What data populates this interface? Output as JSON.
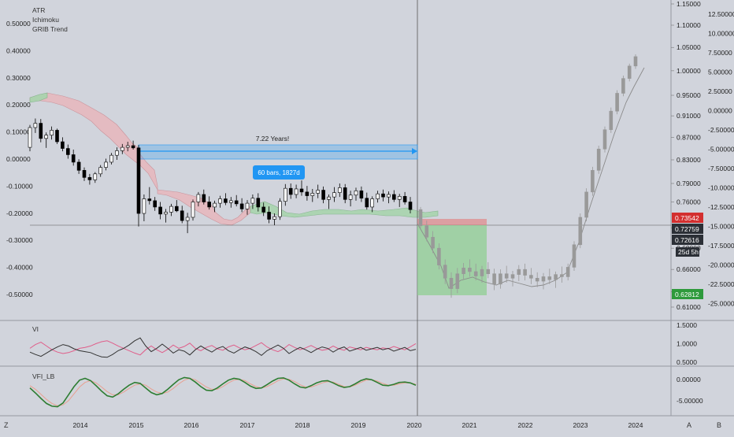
{
  "legend": {
    "main": [
      "ATR",
      "Ichimoku",
      "GRIB Trend"
    ],
    "vi": "VI",
    "vfi": "VFI_LB"
  },
  "annotations": {
    "range_label": "7.22 Years!",
    "bars_label": "60 bars, 1827d"
  },
  "badges": {
    "red": "0.73542",
    "dark1": "0.72759",
    "dark2": "0.72616",
    "countdown": "25d 5h",
    "green": "0.62812"
  },
  "bottom_bar": {
    "left_button": "Z",
    "auto_button": "A",
    "scale_button": "B"
  },
  "colors": {
    "background": "#d1d4dc",
    "up": "#ffffff",
    "down": "#000000",
    "cloud_green": "#a8d5ae",
    "cloud_red": "#e8b7bd",
    "measure_blue": "#2196f3",
    "target_green": "#8fcf93",
    "stop_red": "#e57373",
    "vi_plus": "#e05e8a",
    "vi_minus": "#333333",
    "vfi": "#2e7d32",
    "vfi_signal": "#e8a090",
    "badge_red": "#d32f2f",
    "badge_dark": "#2b2f36",
    "badge_green": "#2e9a3c"
  },
  "chart_data": {
    "type": "candlestick",
    "instrument_scale_left": {
      "label": "ATR",
      "ticks": [
        "0.50000",
        "0.40000",
        "0.30000",
        "0.20000",
        "0.10000",
        "0.00000",
        "-0.10000",
        "-0.20000",
        "-0.30000",
        "-0.40000",
        "-0.50000"
      ]
    },
    "price_scale": {
      "ticks": [
        "1.15000",
        "1.10000",
        "1.05000",
        "1.00000",
        "0.95000",
        "0.91000",
        "0.87000",
        "0.83000",
        "0.79000",
        "0.76000",
        "0.72000",
        "0.69000",
        "0.66000",
        "0.63000",
        "0.61000"
      ]
    },
    "secondary_scale": {
      "ticks": [
        "12.50000",
        "10.00000",
        "7.50000",
        "5.00000",
        "2.50000",
        "0.00000",
        "-2.50000",
        "-5.00000",
        "-7.50000",
        "-10.00000",
        "-12.50000",
        "-15.00000",
        "-17.50000",
        "-20.00000",
        "-22.50000",
        "-25.00000"
      ]
    },
    "vi_scale": {
      "ticks": [
        "1.5000",
        "1.0000",
        "0.5000"
      ]
    },
    "vfi_scale": {
      "ticks": [
        "0.00000",
        "-5.00000"
      ]
    },
    "x_ticks": [
      "2014",
      "2015",
      "2016",
      "2017",
      "2018",
      "2019",
      "2020",
      "2021",
      "2022",
      "2023",
      "2024"
    ],
    "vertical_marker": "2020",
    "series": [
      {
        "name": "historical",
        "ohlc": [
          [
            0.852,
            0.893,
            0.845,
            0.888
          ],
          [
            0.888,
            0.905,
            0.878,
            0.896
          ],
          [
            0.896,
            0.904,
            0.861,
            0.868
          ],
          [
            0.868,
            0.879,
            0.851,
            0.874
          ],
          [
            0.874,
            0.89,
            0.866,
            0.883
          ],
          [
            0.883,
            0.886,
            0.858,
            0.862
          ],
          [
            0.862,
            0.87,
            0.845,
            0.85
          ],
          [
            0.85,
            0.857,
            0.832,
            0.839
          ],
          [
            0.839,
            0.848,
            0.82,
            0.826
          ],
          [
            0.826,
            0.831,
            0.806,
            0.812
          ],
          [
            0.812,
            0.817,
            0.794,
            0.8
          ],
          [
            0.8,
            0.806,
            0.788,
            0.796
          ],
          [
            0.796,
            0.809,
            0.791,
            0.806
          ],
          [
            0.806,
            0.821,
            0.801,
            0.817
          ],
          [
            0.817,
            0.832,
            0.812,
            0.826
          ],
          [
            0.826,
            0.842,
            0.822,
            0.838
          ],
          [
            0.838,
            0.852,
            0.83,
            0.846
          ],
          [
            0.846,
            0.858,
            0.84,
            0.852
          ],
          [
            0.852,
            0.862,
            0.845,
            0.855
          ],
          [
            0.855,
            0.864,
            0.848,
            0.851
          ],
          [
            0.851,
            0.856,
            0.722,
            0.742
          ],
          [
            0.742,
            0.772,
            0.73,
            0.765
          ],
          [
            0.765,
            0.784,
            0.756,
            0.762
          ],
          [
            0.762,
            0.768,
            0.746,
            0.752
          ],
          [
            0.752,
            0.76,
            0.733,
            0.741
          ],
          [
            0.741,
            0.749,
            0.728,
            0.744
          ],
          [
            0.744,
            0.757,
            0.738,
            0.753
          ],
          [
            0.753,
            0.763,
            0.744,
            0.746
          ],
          [
            0.746,
            0.754,
            0.727,
            0.731
          ],
          [
            0.731,
            0.743,
            0.712,
            0.736
          ],
          [
            0.736,
            0.764,
            0.731,
            0.76
          ],
          [
            0.76,
            0.776,
            0.753,
            0.772
          ],
          [
            0.772,
            0.78,
            0.756,
            0.76
          ],
          [
            0.76,
            0.769,
            0.748,
            0.752
          ],
          [
            0.752,
            0.762,
            0.744,
            0.758
          ],
          [
            0.758,
            0.77,
            0.751,
            0.765
          ],
          [
            0.765,
            0.774,
            0.755,
            0.759
          ],
          [
            0.759,
            0.768,
            0.751,
            0.762
          ],
          [
            0.762,
            0.771,
            0.753,
            0.757
          ],
          [
            0.757,
            0.766,
            0.744,
            0.749
          ],
          [
            0.749,
            0.763,
            0.74,
            0.758
          ],
          [
            0.758,
            0.772,
            0.749,
            0.766
          ],
          [
            0.766,
            0.774,
            0.745,
            0.752
          ],
          [
            0.752,
            0.759,
            0.738,
            0.744
          ],
          [
            0.744,
            0.753,
            0.727,
            0.733
          ],
          [
            0.733,
            0.742,
            0.724,
            0.737
          ],
          [
            0.737,
            0.766,
            0.732,
            0.761
          ],
          [
            0.761,
            0.789,
            0.754,
            0.782
          ],
          [
            0.782,
            0.79,
            0.765,
            0.772
          ],
          [
            0.772,
            0.788,
            0.766,
            0.781
          ],
          [
            0.781,
            0.795,
            0.77,
            0.776
          ],
          [
            0.776,
            0.786,
            0.762,
            0.77
          ],
          [
            0.77,
            0.781,
            0.76,
            0.774
          ],
          [
            0.774,
            0.788,
            0.766,
            0.779
          ],
          [
            0.779,
            0.785,
            0.758,
            0.764
          ],
          [
            0.764,
            0.772,
            0.749,
            0.768
          ],
          [
            0.768,
            0.784,
            0.76,
            0.775
          ],
          [
            0.775,
            0.79,
            0.768,
            0.783
          ],
          [
            0.783,
            0.789,
            0.758,
            0.764
          ],
          [
            0.764,
            0.778,
            0.753,
            0.771
          ],
          [
            0.771,
            0.783,
            0.762,
            0.778
          ],
          [
            0.778,
            0.785,
            0.76,
            0.766
          ],
          [
            0.766,
            0.775,
            0.748,
            0.752
          ],
          [
            0.752,
            0.769,
            0.744,
            0.765
          ],
          [
            0.765,
            0.778,
            0.759,
            0.773
          ],
          [
            0.773,
            0.78,
            0.761,
            0.768
          ],
          [
            0.768,
            0.777,
            0.758,
            0.772
          ],
          [
            0.772,
            0.779,
            0.76,
            0.764
          ],
          [
            0.764,
            0.773,
            0.752,
            0.769
          ],
          [
            0.769,
            0.776,
            0.756,
            0.76
          ],
          [
            0.76,
            0.768,
            0.742,
            0.748
          ]
        ]
      },
      {
        "name": "projection",
        "ohlc": [
          [
            0.748,
            0.752,
            0.718,
            0.723
          ],
          [
            0.723,
            0.731,
            0.7,
            0.706
          ],
          [
            0.706,
            0.715,
            0.683,
            0.69
          ],
          [
            0.69,
            0.697,
            0.66,
            0.666
          ],
          [
            0.666,
            0.674,
            0.64,
            0.648
          ],
          [
            0.648,
            0.656,
            0.622,
            0.634
          ],
          [
            0.634,
            0.662,
            0.628,
            0.654
          ],
          [
            0.654,
            0.669,
            0.646,
            0.662
          ],
          [
            0.662,
            0.674,
            0.65,
            0.657
          ],
          [
            0.657,
            0.668,
            0.645,
            0.651
          ],
          [
            0.651,
            0.665,
            0.642,
            0.66
          ],
          [
            0.66,
            0.67,
            0.648,
            0.654
          ],
          [
            0.654,
            0.661,
            0.632,
            0.64
          ],
          [
            0.64,
            0.66,
            0.634,
            0.654
          ],
          [
            0.654,
            0.665,
            0.642,
            0.648
          ],
          [
            0.648,
            0.658,
            0.637,
            0.653
          ],
          [
            0.653,
            0.666,
            0.644,
            0.66
          ],
          [
            0.66,
            0.668,
            0.645,
            0.652
          ],
          [
            0.652,
            0.662,
            0.64,
            0.648
          ],
          [
            0.648,
            0.656,
            0.636,
            0.644
          ],
          [
            0.644,
            0.655,
            0.633,
            0.65
          ],
          [
            0.65,
            0.661,
            0.64,
            0.646
          ],
          [
            0.646,
            0.657,
            0.635,
            0.653
          ],
          [
            0.653,
            0.664,
            0.642,
            0.65
          ],
          [
            0.65,
            0.668,
            0.645,
            0.663
          ],
          [
            0.663,
            0.7,
            0.658,
            0.695
          ],
          [
            0.695,
            0.742,
            0.69,
            0.736
          ],
          [
            0.736,
            0.782,
            0.73,
            0.776
          ],
          [
            0.776,
            0.818,
            0.77,
            0.812
          ],
          [
            0.812,
            0.855,
            0.806,
            0.849
          ],
          [
            0.849,
            0.89,
            0.843,
            0.884
          ],
          [
            0.884,
            0.926,
            0.878,
            0.919
          ],
          [
            0.919,
            0.96,
            0.913,
            0.954
          ],
          [
            0.954,
            0.99,
            0.948,
            0.984
          ],
          [
            0.984,
            1.015,
            0.978,
            1.01
          ],
          [
            1.01,
            1.035,
            1.004,
            1.03
          ]
        ]
      }
    ],
    "vi": {
      "plus": [
        1.02,
        1.18,
        1.28,
        1.12,
        0.96,
        0.86,
        0.8,
        0.84,
        0.92,
        1.02,
        1.06,
        1.12,
        1.22,
        1.3,
        1.34,
        1.24,
        1.12,
        1.02,
        0.92,
        0.82,
        0.74,
        0.96,
        1.12,
        0.96,
        0.84,
        0.98,
        1.16,
        1.02,
        1.1,
        1.24,
        1.02,
        0.92,
        1.06,
        1.14,
        1.0,
        0.94,
        1.08,
        1.16,
        1.04,
        0.96,
        1.02,
        1.14,
        1.26,
        1.08,
        0.96,
        0.88,
        1.0,
        1.18,
        1.06,
        0.96,
        1.04,
        1.14,
        1.02,
        0.94,
        0.98,
        1.12,
        1.0,
        0.94,
        1.08,
        1.02,
        0.96,
        1.06,
        1.0,
        0.96,
        1.04,
        1.0,
        1.1,
        1.02,
        0.96,
        1.08,
        1.22
      ],
      "minus": [
        0.86,
        0.76,
        0.68,
        0.82,
        0.96,
        1.08,
        1.18,
        1.12,
        1.0,
        0.92,
        0.88,
        0.84,
        0.74,
        0.66,
        0.64,
        0.76,
        0.92,
        1.02,
        1.16,
        1.34,
        1.46,
        1.12,
        0.88,
        1.02,
        1.2,
        1.02,
        0.82,
        0.96,
        0.9,
        0.74,
        0.96,
        1.12,
        0.98,
        0.86,
        1.02,
        1.1,
        0.92,
        0.82,
        0.96,
        1.08,
        1.0,
        0.88,
        0.72,
        0.92,
        1.04,
        1.16,
        1.02,
        0.8,
        0.94,
        1.06,
        0.96,
        0.84,
        0.98,
        1.08,
        1.02,
        0.86,
        1.0,
        1.08,
        0.9,
        0.98,
        1.06,
        0.94,
        1.0,
        1.06,
        0.96,
        1.02,
        0.9,
        0.98,
        1.06,
        0.92,
        0.98
      ]
    },
    "vfi": {
      "main": [
        -1.5,
        -2.6,
        -3.8,
        -4.9,
        -5.5,
        -5.6,
        -4.8,
        -3.0,
        -1.2,
        0.2,
        0.6,
        0.1,
        -1.0,
        -2.2,
        -3.2,
        -3.5,
        -2.8,
        -1.8,
        -0.9,
        -0.3,
        -0.5,
        -1.5,
        -2.5,
        -3.0,
        -2.7,
        -1.8,
        -0.7,
        0.3,
        0.8,
        0.6,
        -0.2,
        -1.2,
        -2.0,
        -2.1,
        -1.5,
        -0.6,
        0.2,
        0.6,
        0.4,
        -0.3,
        -1.1,
        -1.6,
        -1.5,
        -0.8,
        0.0,
        0.6,
        0.7,
        0.2,
        -0.6,
        -1.3,
        -1.5,
        -1.0,
        -0.4,
        0.0,
        0.1,
        -0.4,
        -1.0,
        -1.4,
        -1.2,
        -0.6,
        0.1,
        0.5,
        0.3,
        -0.3,
        -0.9,
        -1.0,
        -0.7,
        -0.3,
        -0.2,
        -0.4,
        -0.9
      ],
      "signal": [
        -1.0,
        -1.8,
        -2.9,
        -4.0,
        -4.9,
        -5.4,
        -5.2,
        -4.3,
        -2.8,
        -1.3,
        -0.3,
        0.1,
        -0.4,
        -1.3,
        -2.3,
        -3.0,
        -3.0,
        -2.4,
        -1.6,
        -0.9,
        -0.6,
        -0.9,
        -1.7,
        -2.4,
        -2.7,
        -2.4,
        -1.6,
        -0.6,
        0.2,
        0.6,
        0.3,
        -0.5,
        -1.3,
        -1.8,
        -1.8,
        -1.2,
        -0.4,
        0.2,
        0.4,
        0.1,
        -0.6,
        -1.2,
        -1.5,
        -1.2,
        -0.6,
        0.1,
        0.5,
        0.4,
        -0.1,
        -0.8,
        -1.3,
        -1.3,
        -0.9,
        -0.4,
        -0.1,
        -0.2,
        -0.7,
        -1.2,
        -1.3,
        -0.9,
        -0.3,
        0.2,
        0.3,
        0.0,
        -0.5,
        -0.9,
        -0.9,
        -0.6,
        -0.4,
        -0.4,
        -0.7
      ]
    }
  }
}
